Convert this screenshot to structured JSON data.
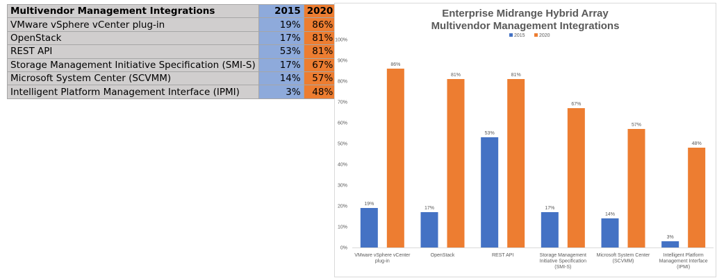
{
  "table": {
    "header": {
      "name": "Multivendor Management Integrations",
      "y2015": "2015",
      "y2020": "2020"
    },
    "rows": [
      {
        "name": "VMware vSphere vCenter plug-in",
        "y2015": "19%",
        "y2020": "86%"
      },
      {
        "name": "OpenStack",
        "y2015": "17%",
        "y2020": "81%"
      },
      {
        "name": "REST API",
        "y2015": "53%",
        "y2020": "81%"
      },
      {
        "name": "Storage Management Initiative Specification (SMI-S)",
        "y2015": "17%",
        "y2020": "67%"
      },
      {
        "name": "Microsoft System Center (SCVMM)",
        "y2015": "14%",
        "y2020": "57%"
      },
      {
        "name": "Intelligent Platform Management Interface (IPMI)",
        "y2015": "3%",
        "y2020": "48%"
      }
    ]
  },
  "chart_data": {
    "type": "bar",
    "title": [
      "Enterprise Midrange Hybrid Array",
      "Multivendor Management Integrations"
    ],
    "categories": [
      [
        "VMware vSphere vCenter",
        "plug-in"
      ],
      [
        "OpenStack"
      ],
      [
        "REST API"
      ],
      [
        "Storage Management",
        "Initiative Specification",
        "(SMI-S)"
      ],
      [
        "Microsoft System Center",
        "(SCVMM)"
      ],
      [
        "Intelligent Platform",
        "Management Interface",
        "(IPMI)"
      ]
    ],
    "series": [
      {
        "name": "2015",
        "color": "#4472c4",
        "values": [
          19,
          17,
          53,
          17,
          14,
          3
        ]
      },
      {
        "name": "2020",
        "color": "#ed7d31",
        "values": [
          86,
          81,
          81,
          67,
          57,
          48
        ]
      }
    ],
    "yticks": [
      0,
      10,
      20,
      30,
      40,
      50,
      60,
      70,
      80,
      90,
      100
    ],
    "ylim": [
      0,
      100
    ],
    "value_suffix": "%",
    "grid": false,
    "legend": "top-left"
  }
}
